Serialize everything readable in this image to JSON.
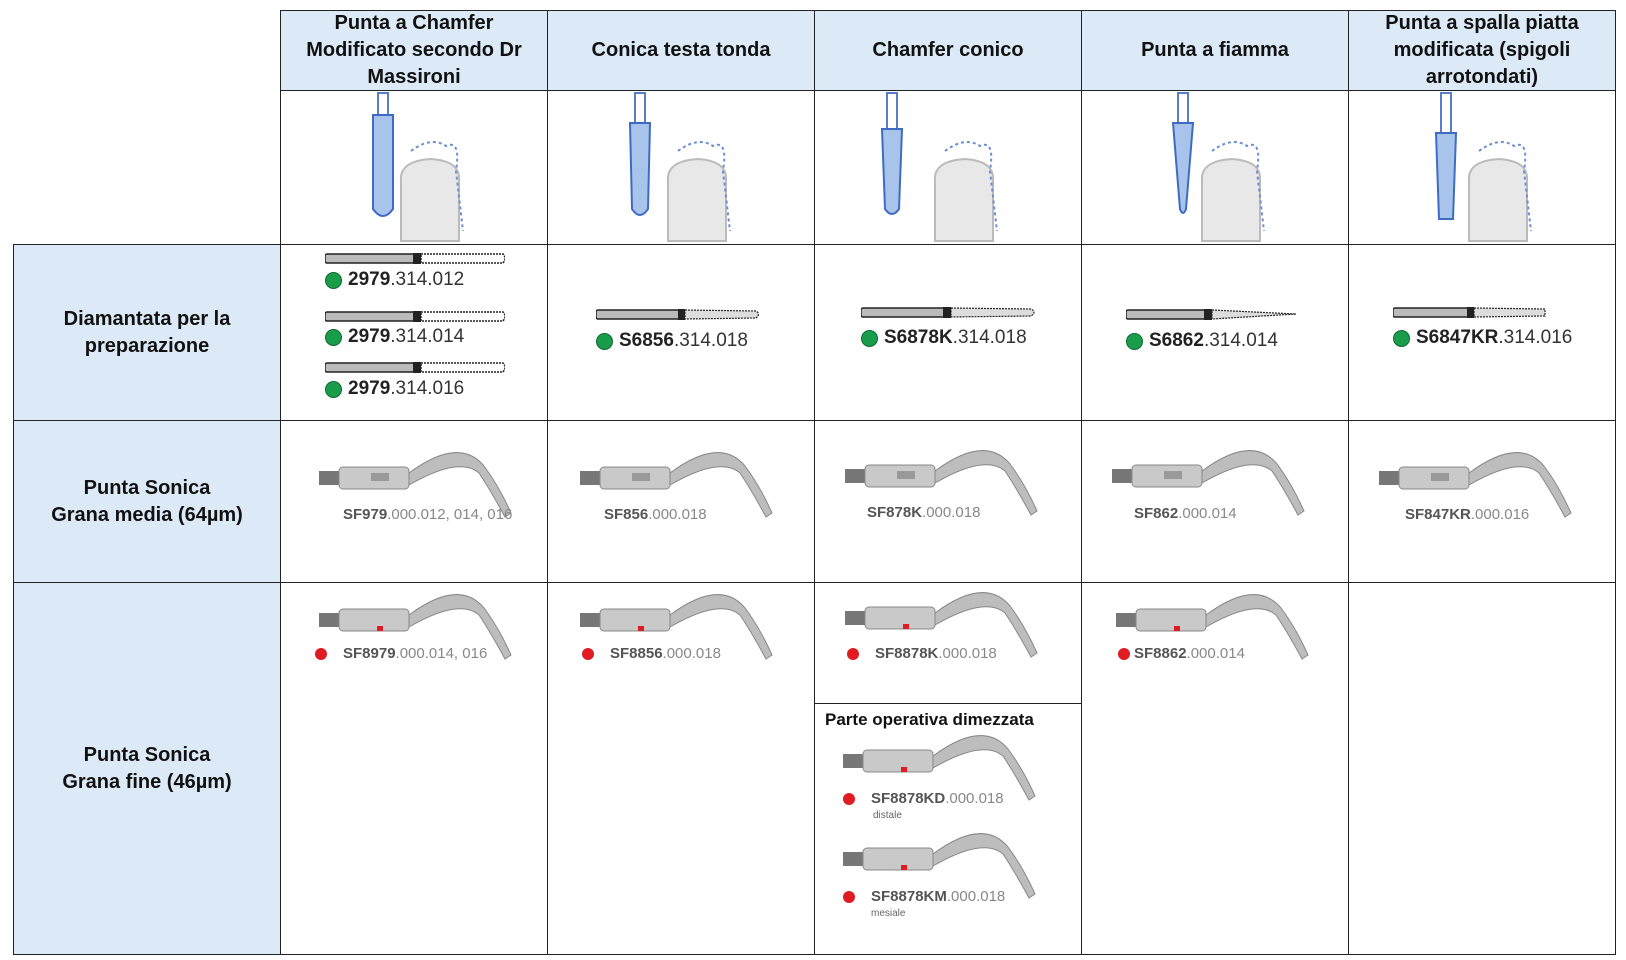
{
  "columns": [
    {
      "label": "Punta a Chamfer\nModificato secondo Dr\nMassironi"
    },
    {
      "label": "Conica testa tonda"
    },
    {
      "label": "Chamfer conico"
    },
    {
      "label": "Punta a fiamma"
    },
    {
      "label": "Punta a spalla piatta\nmodificata (spigoli\narrotondati)"
    }
  ],
  "rows": [
    {
      "label": "Diamantata per la\npreparazione"
    },
    {
      "label": "Punta Sonica\nGrana media (64µm)"
    },
    {
      "label": "Punta Sonica\nGrana fine (46µm)"
    }
  ],
  "diamond": {
    "col1": [
      {
        "bold": "2979",
        "rest": ".314.012"
      },
      {
        "bold": "2979",
        "rest": ".314.014"
      },
      {
        "bold": "2979",
        "rest": ".314.016"
      }
    ],
    "col2": {
      "bold": "S6856",
      "rest": ".314.018"
    },
    "col3": {
      "bold": "S6878K",
      "rest": ".314.018"
    },
    "col4": {
      "bold": "S6862",
      "rest": ".314.014"
    },
    "col5": {
      "bold": "S6847KR",
      "rest": ".314.016"
    }
  },
  "sonic_medium": {
    "col1": {
      "bold": "SF979",
      "rest": ".000.012, 014, 016"
    },
    "col2": {
      "bold": "SF856",
      "rest": ".000.018"
    },
    "col3": {
      "bold": "SF878K",
      "rest": ".000.018"
    },
    "col4": {
      "bold": "SF862",
      "rest": ".000.014"
    },
    "col5": {
      "bold": "SF847KR",
      "rest": ".000.016"
    }
  },
  "sonic_fine": {
    "col1": {
      "bold": "SF8979",
      "rest": ".000.014, 016"
    },
    "col2": {
      "bold": "SF8856",
      "rest": ".000.018"
    },
    "col3": {
      "bold": "SF8878K",
      "rest": ".000.018"
    },
    "col4": {
      "bold": "SF8862",
      "rest": ".000.014"
    },
    "half_title": "Parte operativa dimezzata",
    "half_distal": {
      "bold": "SF8878KD",
      "rest": ".000.018",
      "note": "distale"
    },
    "half_mesial": {
      "bold": "SF8878KM",
      "rest": ".000.018",
      "note": "mesiale"
    }
  },
  "colors": {
    "header_bg": "#dce9f6",
    "green_dot": "#1a9d4b",
    "red_dot": "#e11b22",
    "bur_blue": "#a9c4ea"
  }
}
